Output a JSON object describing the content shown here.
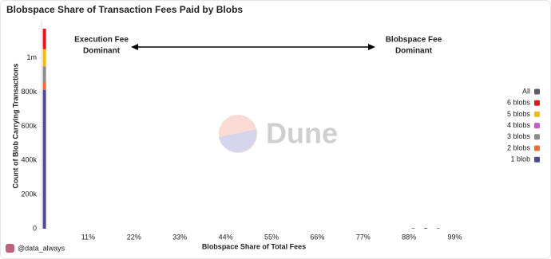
{
  "chart_data": {
    "type": "stacked_bar",
    "title": "Blobspace Share of Transaction Fees Paid by Blobs",
    "xlabel": "Blobspace Share of Total Fees",
    "ylabel": "Count of Blob Carrying Transactions",
    "annotations": [
      {
        "lines": [
          "Execution Fee",
          "Dominant"
        ]
      },
      {
        "lines": [
          "Blobspace Fee",
          "Dominant"
        ]
      }
    ],
    "watermark": "Dune",
    "footer": "@data_always",
    "x": [
      0.5,
      89,
      92,
      95
    ],
    "xlim": [
      0,
      101
    ],
    "xticks": [
      {
        "value": 11,
        "label": "11%"
      },
      {
        "value": 22,
        "label": "22%"
      },
      {
        "value": 33,
        "label": "33%"
      },
      {
        "value": 44,
        "label": "44%"
      },
      {
        "value": 55,
        "label": "55%"
      },
      {
        "value": 66,
        "label": "66%"
      },
      {
        "value": 77,
        "label": "77%"
      },
      {
        "value": 88,
        "label": "88%"
      },
      {
        "value": 99,
        "label": "99%"
      }
    ],
    "ylim": [
      0,
      1200000
    ],
    "yticks": [
      {
        "value": 0,
        "label": "0"
      },
      {
        "value": 200000,
        "label": "200k"
      },
      {
        "value": 400000,
        "label": "400k"
      },
      {
        "value": 600000,
        "label": "600k"
      },
      {
        "value": 800000,
        "label": "800k"
      },
      {
        "value": 1000000,
        "label": "1m"
      }
    ],
    "grid": false,
    "legend": "right",
    "series": [
      {
        "name": "All",
        "color": "#5b5b6b",
        "values": [
          null,
          null,
          null,
          null
        ]
      },
      {
        "name": "6 blobs",
        "color": "#e8141e",
        "values": [
          120000,
          0,
          0,
          0
        ]
      },
      {
        "name": "5 blobs",
        "color": "#f2b90f",
        "values": [
          100000,
          0,
          0,
          0
        ]
      },
      {
        "name": "4 blobs",
        "color": "#c85ac8",
        "values": [
          3000,
          0,
          0,
          0
        ]
      },
      {
        "name": "3 blobs",
        "color": "#8c8c8c",
        "values": [
          90000,
          0,
          0,
          0
        ]
      },
      {
        "name": "2 blobs",
        "color": "#ef6a3a",
        "values": [
          45000,
          0,
          0,
          0
        ]
      },
      {
        "name": "1 blob",
        "color": "#4b4b9b",
        "values": [
          814000,
          3000,
          4000,
          3000
        ]
      }
    ]
  }
}
